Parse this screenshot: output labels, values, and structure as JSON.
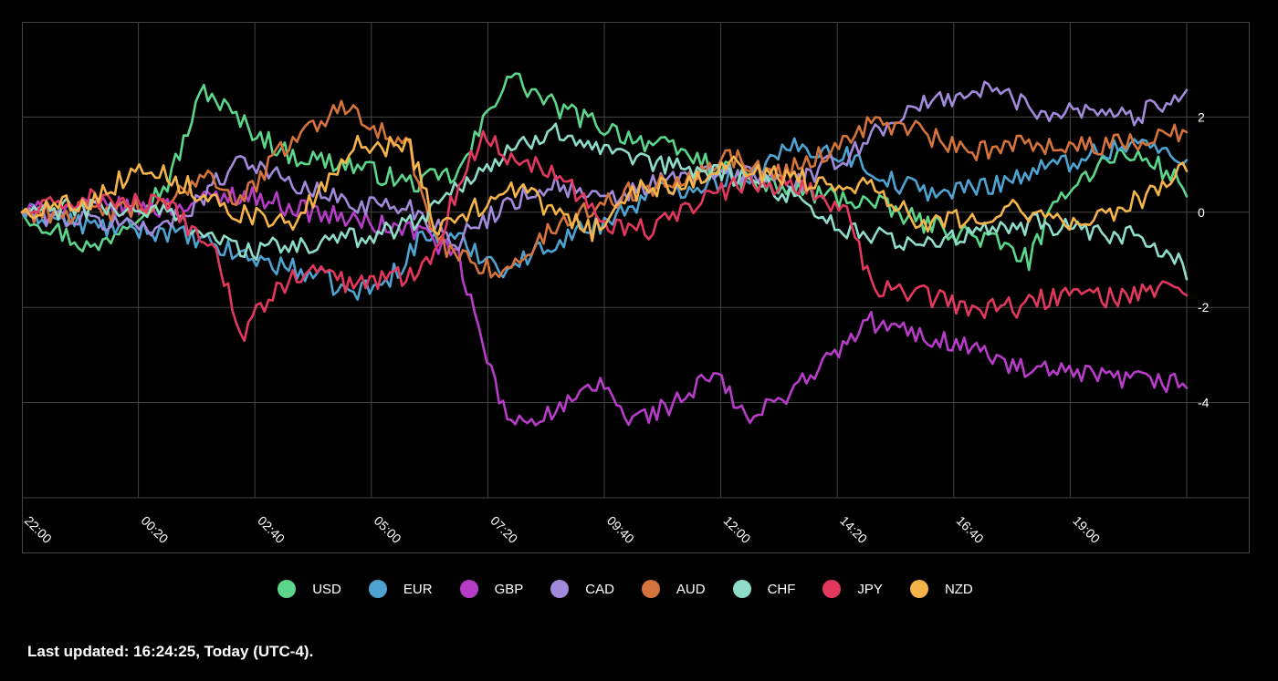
{
  "chart_data": {
    "type": "line",
    "title": "",
    "xlabel": "",
    "ylabel": "",
    "x_tick_labels": [
      "22:00",
      "00:20",
      "02:40",
      "05:00",
      "07:20",
      "09:40",
      "12:00",
      "14:20",
      "16:40",
      "19:00"
    ],
    "y_ticks": [
      -4,
      -2,
      0,
      2
    ],
    "y_tick_labels": [
      "-4",
      "-2",
      "0",
      "2"
    ],
    "ylim": [
      -6,
      4
    ],
    "x_count": 97,
    "grid": true,
    "legend_position": "bottom-center",
    "series": [
      {
        "name": "USD",
        "color": "#5cd68a",
        "anchors": [
          [
            0,
            0
          ],
          [
            6,
            -0.8
          ],
          [
            12,
            0.6
          ],
          [
            15,
            2.6
          ],
          [
            18,
            1.9
          ],
          [
            22,
            1.2
          ],
          [
            27,
            1.0
          ],
          [
            32,
            0.6
          ],
          [
            36,
            0.8
          ],
          [
            40,
            2.9
          ],
          [
            44,
            2.2
          ],
          [
            50,
            1.6
          ],
          [
            55,
            1.2
          ],
          [
            60,
            0.6
          ],
          [
            65,
            0.4
          ],
          [
            70,
            0.2
          ],
          [
            74,
            -0.2
          ],
          [
            80,
            -0.6
          ],
          [
            83,
            -1.0
          ],
          [
            86,
            0.5
          ],
          [
            90,
            1.2
          ],
          [
            93,
            1.1
          ],
          [
            96,
            0.5
          ]
        ]
      },
      {
        "name": "EUR",
        "color": "#4fa3d1",
        "anchors": [
          [
            0,
            0
          ],
          [
            6,
            -0.3
          ],
          [
            12,
            -0.4
          ],
          [
            18,
            -0.9
          ],
          [
            24,
            -1.3
          ],
          [
            27,
            -1.7
          ],
          [
            30,
            -1.5
          ],
          [
            33,
            -0.5
          ],
          [
            36,
            -0.6
          ],
          [
            40,
            -1.2
          ],
          [
            44,
            -0.6
          ],
          [
            48,
            -0.2
          ],
          [
            52,
            0.4
          ],
          [
            56,
            0.6
          ],
          [
            60,
            0.8
          ],
          [
            64,
            1.4
          ],
          [
            68,
            1.2
          ],
          [
            72,
            0.6
          ],
          [
            76,
            0.4
          ],
          [
            80,
            0.6
          ],
          [
            84,
            0.9
          ],
          [
            88,
            1.2
          ],
          [
            92,
            1.5
          ],
          [
            96,
            1.0
          ]
        ]
      },
      {
        "name": "GBP",
        "color": "#b73cc8",
        "anchors": [
          [
            0,
            0
          ],
          [
            6,
            0.1
          ],
          [
            12,
            0.1
          ],
          [
            18,
            0.4
          ],
          [
            24,
            0.0
          ],
          [
            30,
            -0.3
          ],
          [
            33,
            -0.4
          ],
          [
            36,
            -1.0
          ],
          [
            38,
            -2.8
          ],
          [
            40,
            -4.4
          ],
          [
            44,
            -4.2
          ],
          [
            48,
            -3.6
          ],
          [
            50,
            -4.4
          ],
          [
            54,
            -4.0
          ],
          [
            57,
            -3.4
          ],
          [
            60,
            -4.4
          ],
          [
            63,
            -3.8
          ],
          [
            66,
            -3.2
          ],
          [
            70,
            -2.3
          ],
          [
            74,
            -2.6
          ],
          [
            78,
            -2.8
          ],
          [
            82,
            -3.3
          ],
          [
            86,
            -3.4
          ],
          [
            90,
            -3.5
          ],
          [
            96,
            -3.6
          ]
        ]
      },
      {
        "name": "CAD",
        "color": "#a18ad9",
        "anchors": [
          [
            0,
            0
          ],
          [
            6,
            -0.2
          ],
          [
            12,
            -0.3
          ],
          [
            16,
            0.6
          ],
          [
            18,
            1.2
          ],
          [
            22,
            0.6
          ],
          [
            27,
            0.2
          ],
          [
            32,
            0.1
          ],
          [
            36,
            -0.6
          ],
          [
            40,
            0.2
          ],
          [
            44,
            0.6
          ],
          [
            48,
            0.2
          ],
          [
            52,
            0.6
          ],
          [
            56,
            0.8
          ],
          [
            60,
            0.8
          ],
          [
            64,
            0.6
          ],
          [
            68,
            1.2
          ],
          [
            72,
            2.0
          ],
          [
            76,
            2.4
          ],
          [
            80,
            2.6
          ],
          [
            84,
            2.1
          ],
          [
            88,
            2.2
          ],
          [
            92,
            2.0
          ],
          [
            95,
            2.5
          ],
          [
            96,
            2.4
          ]
        ]
      },
      {
        "name": "AUD",
        "color": "#d4733c",
        "anchors": [
          [
            0,
            0
          ],
          [
            6,
            0.0
          ],
          [
            12,
            0.1
          ],
          [
            15,
            0.9
          ],
          [
            18,
            0.2
          ],
          [
            22,
            1.5
          ],
          [
            27,
            2.3
          ],
          [
            30,
            1.6
          ],
          [
            32,
            1.3
          ],
          [
            34,
            -0.6
          ],
          [
            37,
            -1.0
          ],
          [
            40,
            -1.3
          ],
          [
            43,
            -0.5
          ],
          [
            46,
            0.0
          ],
          [
            50,
            0.4
          ],
          [
            54,
            0.7
          ],
          [
            58,
            1.2
          ],
          [
            62,
            0.8
          ],
          [
            66,
            1.2
          ],
          [
            70,
            1.9
          ],
          [
            74,
            1.7
          ],
          [
            78,
            1.2
          ],
          [
            82,
            1.5
          ],
          [
            86,
            1.4
          ],
          [
            90,
            1.4
          ],
          [
            93,
            1.6
          ],
          [
            96,
            1.7
          ]
        ]
      },
      {
        "name": "CHF",
        "color": "#8fdcc8",
        "anchors": [
          [
            0,
            0
          ],
          [
            6,
            0.1
          ],
          [
            12,
            0.0
          ],
          [
            18,
            -0.8
          ],
          [
            24,
            -0.7
          ],
          [
            30,
            -0.4
          ],
          [
            33,
            -0.1
          ],
          [
            36,
            0.6
          ],
          [
            40,
            1.2
          ],
          [
            44,
            1.8
          ],
          [
            48,
            1.2
          ],
          [
            52,
            1.0
          ],
          [
            56,
            0.9
          ],
          [
            60,
            0.7
          ],
          [
            64,
            0.3
          ],
          [
            68,
            -0.4
          ],
          [
            72,
            -0.6
          ],
          [
            76,
            -0.6
          ],
          [
            80,
            -0.4
          ],
          [
            84,
            -0.2
          ],
          [
            88,
            -0.5
          ],
          [
            92,
            -0.5
          ],
          [
            96,
            -1.2
          ]
        ]
      },
      {
        "name": "JPY",
        "color": "#e3385e",
        "anchors": [
          [
            0,
            0
          ],
          [
            6,
            0.3
          ],
          [
            12,
            0.1
          ],
          [
            16,
            -0.8
          ],
          [
            18,
            -2.6
          ],
          [
            21,
            -1.6
          ],
          [
            24,
            -1.2
          ],
          [
            27,
            -1.5
          ],
          [
            30,
            -1.4
          ],
          [
            32,
            -1.3
          ],
          [
            34,
            -0.8
          ],
          [
            36,
            0.6
          ],
          [
            38,
            1.6
          ],
          [
            40,
            1.2
          ],
          [
            44,
            0.9
          ],
          [
            48,
            -0.2
          ],
          [
            52,
            -0.4
          ],
          [
            56,
            0.3
          ],
          [
            60,
            0.6
          ],
          [
            64,
            0.6
          ],
          [
            68,
            0.0
          ],
          [
            70,
            -1.6
          ],
          [
            74,
            -1.7
          ],
          [
            78,
            -2.0
          ],
          [
            82,
            -2.0
          ],
          [
            86,
            -1.7
          ],
          [
            90,
            -1.8
          ],
          [
            93,
            -1.6
          ],
          [
            96,
            -1.8
          ]
        ]
      },
      {
        "name": "NZD",
        "color": "#f4b44a",
        "anchors": [
          [
            0,
            0
          ],
          [
            6,
            0.3
          ],
          [
            10,
            1.0
          ],
          [
            14,
            0.5
          ],
          [
            18,
            0.0
          ],
          [
            22,
            -0.3
          ],
          [
            26,
            0.8
          ],
          [
            28,
            1.5
          ],
          [
            30,
            1.4
          ],
          [
            32,
            1.4
          ],
          [
            34,
            -0.3
          ],
          [
            37,
            0.0
          ],
          [
            40,
            0.6
          ],
          [
            44,
            0.0
          ],
          [
            47,
            -0.4
          ],
          [
            50,
            0.4
          ],
          [
            54,
            0.6
          ],
          [
            58,
            1.0
          ],
          [
            62,
            0.8
          ],
          [
            66,
            0.6
          ],
          [
            70,
            0.6
          ],
          [
            74,
            -0.2
          ],
          [
            78,
            -0.1
          ],
          [
            82,
            0.1
          ],
          [
            86,
            -0.3
          ],
          [
            90,
            0.0
          ],
          [
            93,
            0.4
          ],
          [
            96,
            1.0
          ]
        ]
      }
    ]
  },
  "footer": {
    "text": "Last updated: 16:24:25, Today (UTC-4)."
  }
}
